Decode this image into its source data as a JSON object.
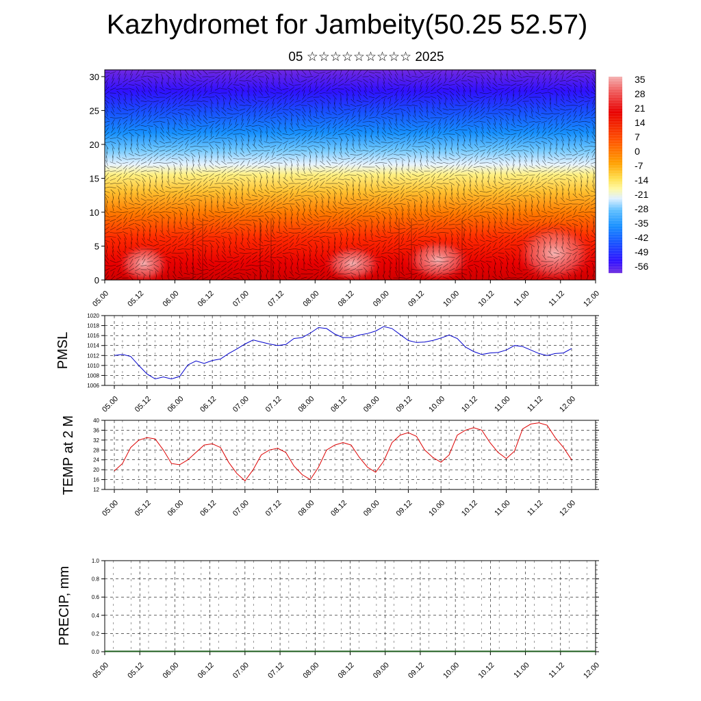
{
  "title": "Kazhydromet for Jambeity(50.25 52.57)",
  "subtitle": "05 ☆☆☆☆☆☆☆☆☆ 2025",
  "chart_data": [
    {
      "type": "heatmap",
      "title": "Kazhydromet for Jambeity(50.25 52.57)",
      "x_tick_labels": [
        "05.00",
        "05.12",
        "06.00",
        "06.12",
        "07.00",
        "07.12",
        "08.00",
        "08.12",
        "09.00",
        "09.12",
        "10.00",
        "10.12",
        "11.00",
        "11.12",
        "12.00"
      ],
      "y_tick_labels": [
        "0",
        "5",
        "10",
        "15",
        "20",
        "25",
        "30"
      ],
      "ylim": [
        0,
        31
      ],
      "colorbar_labels": [
        "35",
        "28",
        "21",
        "14",
        "7",
        "0",
        "-7",
        "-14",
        "-21",
        "-28",
        "-35",
        "-42",
        "-49",
        "-56"
      ],
      "colorbar_range": [
        -60,
        38
      ],
      "overlay": "wind barbs",
      "colors": {
        "warm": "#e80000",
        "mid": "#ffe860",
        "cold": "#3a10ff"
      }
    },
    {
      "type": "line",
      "ylabel": "PMSL",
      "ylim": [
        1006,
        1020
      ],
      "y_tick_labels": [
        "1006",
        "1008",
        "1010",
        "1012",
        "1014",
        "1016",
        "1018",
        "1020"
      ],
      "x_tick_labels": [
        "05.00",
        "05.12",
        "06.00",
        "06.12",
        "07.00",
        "07.12",
        "08.00",
        "08.12",
        "09.00",
        "09.12",
        "10.00",
        "10.12",
        "11.00",
        "11.12",
        "12.00"
      ],
      "grid": true,
      "line_color": "#0000cc",
      "x": [
        0,
        3,
        6,
        9,
        12,
        15,
        18,
        21,
        24,
        27,
        30,
        33,
        36,
        39,
        42,
        45,
        48,
        51,
        54,
        57,
        60,
        63,
        66,
        69,
        72,
        75,
        78,
        81,
        84,
        87,
        90,
        93,
        96,
        99,
        102,
        105,
        108,
        111,
        114,
        117,
        120,
        123,
        126,
        129,
        132,
        135,
        138,
        141,
        144,
        147,
        150,
        153,
        156,
        159,
        162,
        165,
        168
      ],
      "values": [
        1012.0,
        1012.2,
        1011.8,
        1010.0,
        1008.3,
        1007.3,
        1007.7,
        1007.3,
        1007.8,
        1010.1,
        1010.9,
        1010.4,
        1011.0,
        1011.3,
        1012.4,
        1013.3,
        1014.3,
        1015.1,
        1014.7,
        1014.3,
        1014.0,
        1014.2,
        1015.4,
        1015.6,
        1016.5,
        1017.6,
        1017.4,
        1016.3,
        1015.6,
        1015.6,
        1016.1,
        1016.4,
        1016.9,
        1017.8,
        1017.4,
        1016.2,
        1015.0,
        1014.6,
        1014.7,
        1015.0,
        1015.5,
        1016.1,
        1015.4,
        1013.7,
        1012.8,
        1012.2,
        1012.5,
        1012.6,
        1013.1,
        1014.0,
        1013.8,
        1013.1,
        1012.4,
        1012.0,
        1012.4,
        1012.5,
        1013.4
      ]
    },
    {
      "type": "line",
      "ylabel": "TEMP at 2 M",
      "ylim": [
        12,
        40
      ],
      "y_tick_labels": [
        "12",
        "16",
        "20",
        "24",
        "28",
        "32",
        "36",
        "40"
      ],
      "x_tick_labels": [
        "05.00",
        "05.12",
        "06.00",
        "06.12",
        "07.00",
        "07.12",
        "08.00",
        "08.12",
        "09.00",
        "09.12",
        "10.00",
        "10.12",
        "11.00",
        "11.12",
        "12.00"
      ],
      "grid": true,
      "line_color": "#dd0000",
      "x": [
        0,
        3,
        6,
        9,
        12,
        15,
        18,
        21,
        24,
        27,
        30,
        33,
        36,
        39,
        42,
        45,
        48,
        51,
        54,
        57,
        60,
        63,
        66,
        69,
        72,
        75,
        78,
        81,
        84,
        87,
        90,
        93,
        96,
        99,
        102,
        105,
        108,
        111,
        114,
        117,
        120,
        123,
        126,
        129,
        132,
        135,
        138,
        141,
        144,
        147,
        150,
        153,
        156,
        159,
        162,
        165,
        168
      ],
      "values": [
        19.5,
        22.5,
        29,
        32,
        33,
        32.5,
        28,
        22.5,
        22,
        24,
        27,
        30,
        30.5,
        29,
        23,
        18.5,
        15.5,
        20,
        26,
        28,
        28.7,
        27,
        21.5,
        18,
        16,
        21,
        28,
        30,
        31,
        30,
        25,
        21,
        19,
        23.5,
        31,
        34,
        35,
        33.5,
        28,
        25,
        23,
        26,
        34,
        36,
        37,
        36,
        31,
        27,
        24.5,
        27.5,
        36.5,
        38.5,
        39,
        38,
        33,
        29,
        24
      ]
    },
    {
      "type": "bar",
      "ylabel": "PRECIP, mm",
      "ylim": [
        0,
        1
      ],
      "y_tick_labels": [
        "0.0",
        "0.2",
        "0.4",
        "0.6",
        "0.8",
        "1.0"
      ],
      "x_tick_labels": [
        "05.00",
        "05.12",
        "06.00",
        "06.12",
        "07.00",
        "07.12",
        "08.00",
        "08.12",
        "09.00",
        "09.12",
        "10.00",
        "10.12",
        "11.00",
        "11.12",
        "12.00"
      ],
      "grid": true,
      "values": [
        0,
        0,
        0,
        0,
        0,
        0,
        0,
        0,
        0,
        0,
        0,
        0,
        0,
        0,
        0,
        0,
        0,
        0,
        0,
        0,
        0,
        0,
        0,
        0,
        0,
        0,
        0,
        0,
        0,
        0,
        0,
        0,
        0,
        0,
        0,
        0,
        0,
        0,
        0,
        0,
        0,
        0,
        0,
        0,
        0,
        0,
        0,
        0,
        0,
        0,
        0,
        0,
        0,
        0,
        0,
        0,
        0
      ]
    }
  ]
}
